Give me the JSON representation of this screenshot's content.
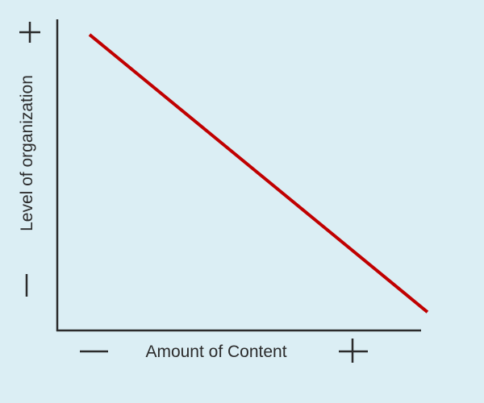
{
  "chart_data": {
    "type": "line",
    "title": "",
    "xlabel": "Amount of Content",
    "ylabel": "Level of organization",
    "x_axis_markers": {
      "low": "minus-icon",
      "high": "plus-icon"
    },
    "y_axis_markers": {
      "low": "minus-icon",
      "high": "plus-icon"
    },
    "xlim": [
      0,
      100
    ],
    "ylim": [
      0,
      100
    ],
    "grid": false,
    "series": [
      {
        "color": "#c00000",
        "x": [
          8.9,
          102.2
        ],
        "y": [
          95.1,
          5.9
        ]
      }
    ]
  }
}
